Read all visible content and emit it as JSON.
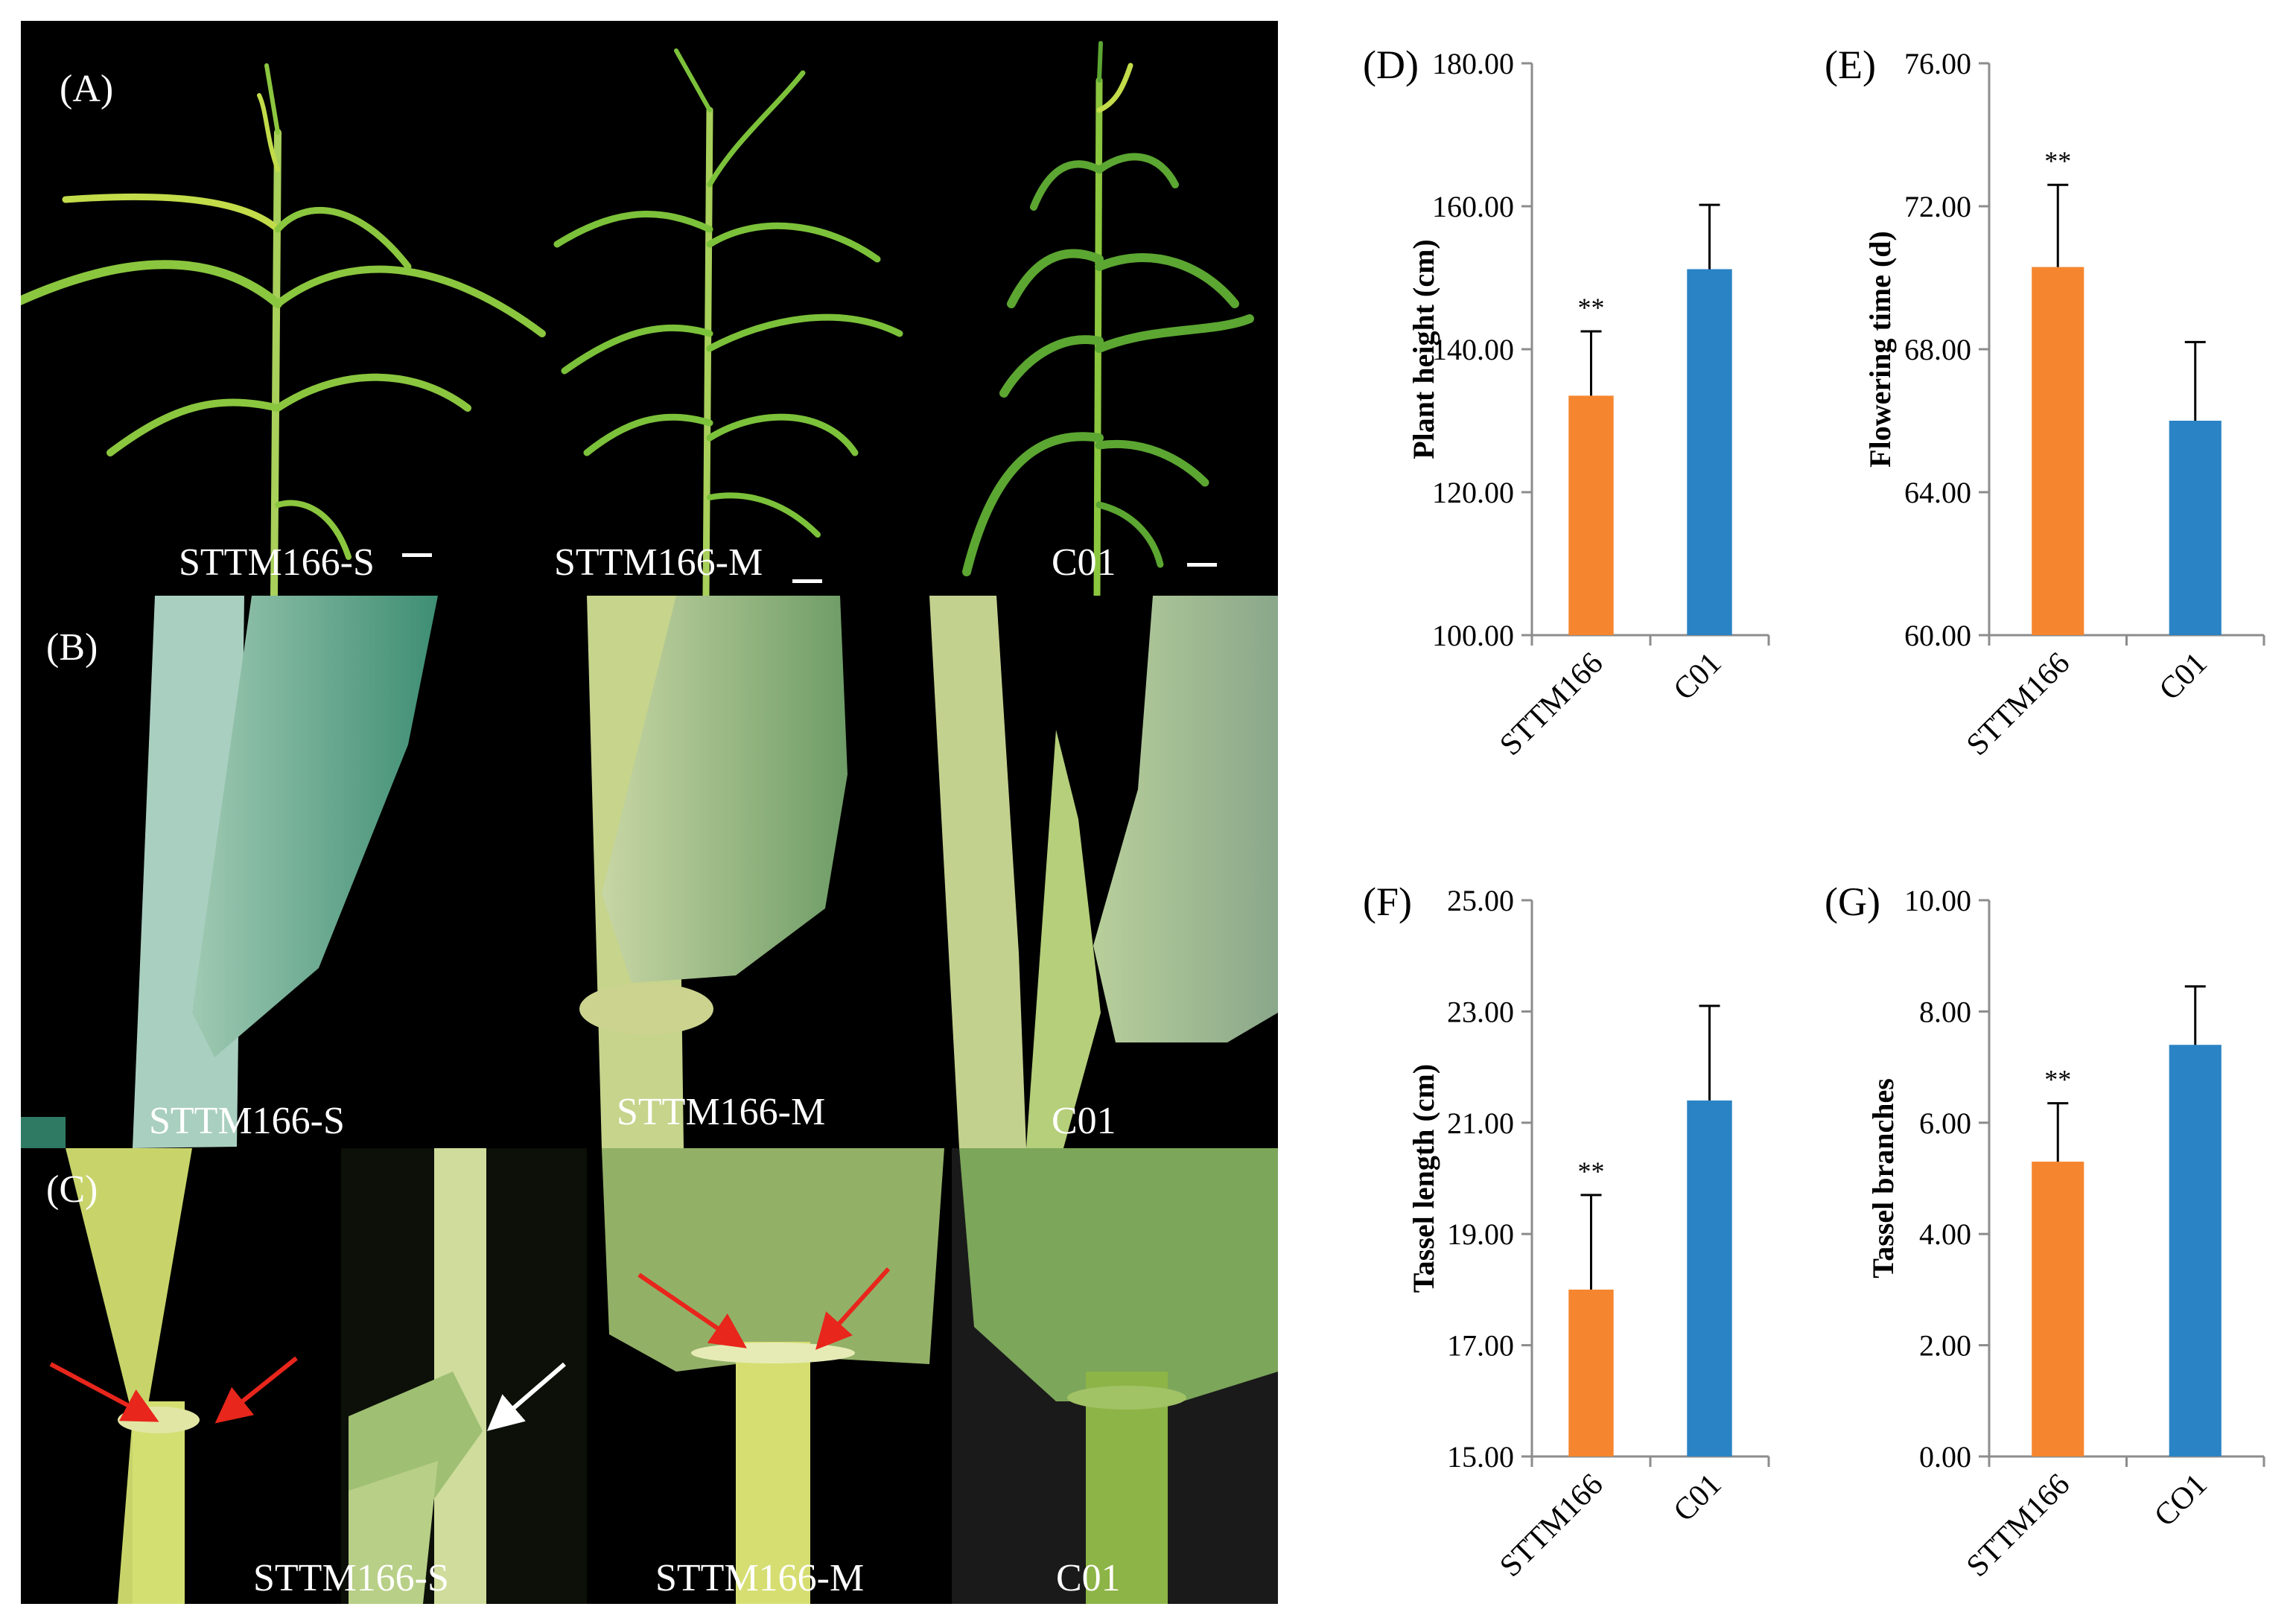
{
  "panels": {
    "A": {
      "label": "(A)",
      "captions": [
        "STTM166-S",
        "STTM166-M",
        "C01"
      ]
    },
    "B": {
      "label": "(B)",
      "captions": [
        "STTM166-S",
        "STTM166-M",
        "C01"
      ]
    },
    "C": {
      "label": "(C)",
      "captions": [
        "STTM166-S",
        "STTM166-M",
        "C01"
      ]
    }
  },
  "colors": {
    "STTM166": "#f5862f",
    "C01": "#2a83c4",
    "arrow_red": "#e8261c",
    "arrow_white": "#ffffff"
  },
  "chart_data": [
    {
      "panel": "(D)",
      "type": "bar",
      "ylabel": "Plant height (cm)",
      "categories": [
        "STTM166",
        "C01"
      ],
      "values": [
        133.5,
        151.2
      ],
      "errors": [
        9.0,
        9.0
      ],
      "significance": [
        "**",
        ""
      ],
      "ylim": [
        100,
        180
      ],
      "yticks": [
        "100.00",
        "120.00",
        "140.00",
        "160.00",
        "180.00"
      ]
    },
    {
      "panel": "(E)",
      "type": "bar",
      "ylabel": "Flowering time (d)",
      "categories": [
        "STTM166",
        "C01"
      ],
      "values": [
        70.3,
        66.0
      ],
      "errors": [
        2.3,
        2.2
      ],
      "significance": [
        "**",
        ""
      ],
      "ylim": [
        60,
        76
      ],
      "yticks": [
        "60.00",
        "64.00",
        "68.00",
        "72.00",
        "76.00"
      ]
    },
    {
      "panel": "(F)",
      "type": "bar",
      "ylabel": "Tassel length (cm)",
      "categories": [
        "STTM166",
        "C01"
      ],
      "values": [
        18.0,
        21.4
      ],
      "errors": [
        1.7,
        1.7
      ],
      "significance": [
        "**",
        ""
      ],
      "ylim": [
        15,
        25
      ],
      "yticks": [
        "15.00",
        "17.00",
        "19.00",
        "21.00",
        "23.00",
        "25.00"
      ]
    },
    {
      "panel": "(G)",
      "type": "bar",
      "ylabel": "Tassel branches",
      "categories": [
        "STTM166",
        "CO1"
      ],
      "values": [
        5.3,
        7.4
      ],
      "errors": [
        1.05,
        1.05
      ],
      "significance": [
        "**",
        ""
      ],
      "ylim": [
        0,
        10
      ],
      "yticks": [
        "0.00",
        "2.00",
        "4.00",
        "6.00",
        "8.00",
        "10.00"
      ]
    }
  ]
}
